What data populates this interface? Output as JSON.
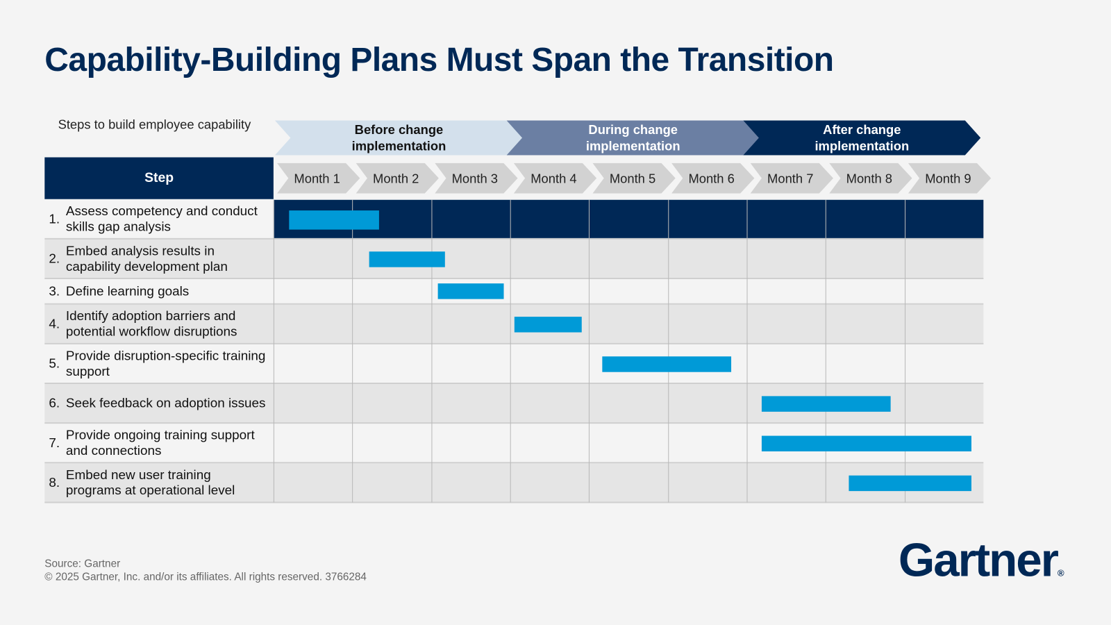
{
  "title": "Capability-Building Plans Must Span the Transition",
  "steps_caption": "Steps to build employee capability",
  "step_header": "Step",
  "colors": {
    "navy": "#002856",
    "bar": "#009ad7",
    "before": "#d3e0ec",
    "during": "#6b7fa3",
    "after": "#002856"
  },
  "phases": [
    {
      "label": "Before change implementation",
      "months": [
        1,
        3
      ]
    },
    {
      "label": "During change implementation",
      "months": [
        4,
        6
      ]
    },
    {
      "label": "After change implementation",
      "months": [
        7,
        9
      ]
    }
  ],
  "chart_data": {
    "type": "gantt",
    "xunit": "month",
    "categories": [
      "Month 1",
      "Month 2",
      "Month 3",
      "Month 4",
      "Month 5",
      "Month 6",
      "Month 7",
      "Month 8",
      "Month 9"
    ],
    "xlim": [
      0,
      9
    ],
    "tasks": [
      {
        "num": "1.",
        "label": "Assess competency and conduct skills gap analysis",
        "start": 0.2,
        "end": 1.34,
        "highlighted": true
      },
      {
        "num": "2.",
        "label": "Embed analysis results in capability development plan",
        "start": 1.21,
        "end": 2.17
      },
      {
        "num": "3.",
        "label": "Define learning goals",
        "start": 2.08,
        "end": 2.92
      },
      {
        "num": "4.",
        "label": "Identify adoption barriers and potential workflow disruptions",
        "start": 3.05,
        "end": 3.91
      },
      {
        "num": "5.",
        "label": "Provide disruption-specific training support",
        "start": 4.17,
        "end": 5.8
      },
      {
        "num": "6.",
        "label": "Seek feedback on adoption issues",
        "start": 6.19,
        "end": 7.82
      },
      {
        "num": "7.",
        "label": "Provide ongoing training support and connections",
        "start": 6.19,
        "end": 8.85
      },
      {
        "num": "8.",
        "label": "Embed new user training programs at operational level",
        "start": 7.29,
        "end": 8.85
      }
    ]
  },
  "footer": {
    "source": "Source: Gartner",
    "copyright": "© 2025 Gartner, Inc. and/or its affiliates. All rights reserved. 3766284"
  },
  "logo": "Gartner"
}
